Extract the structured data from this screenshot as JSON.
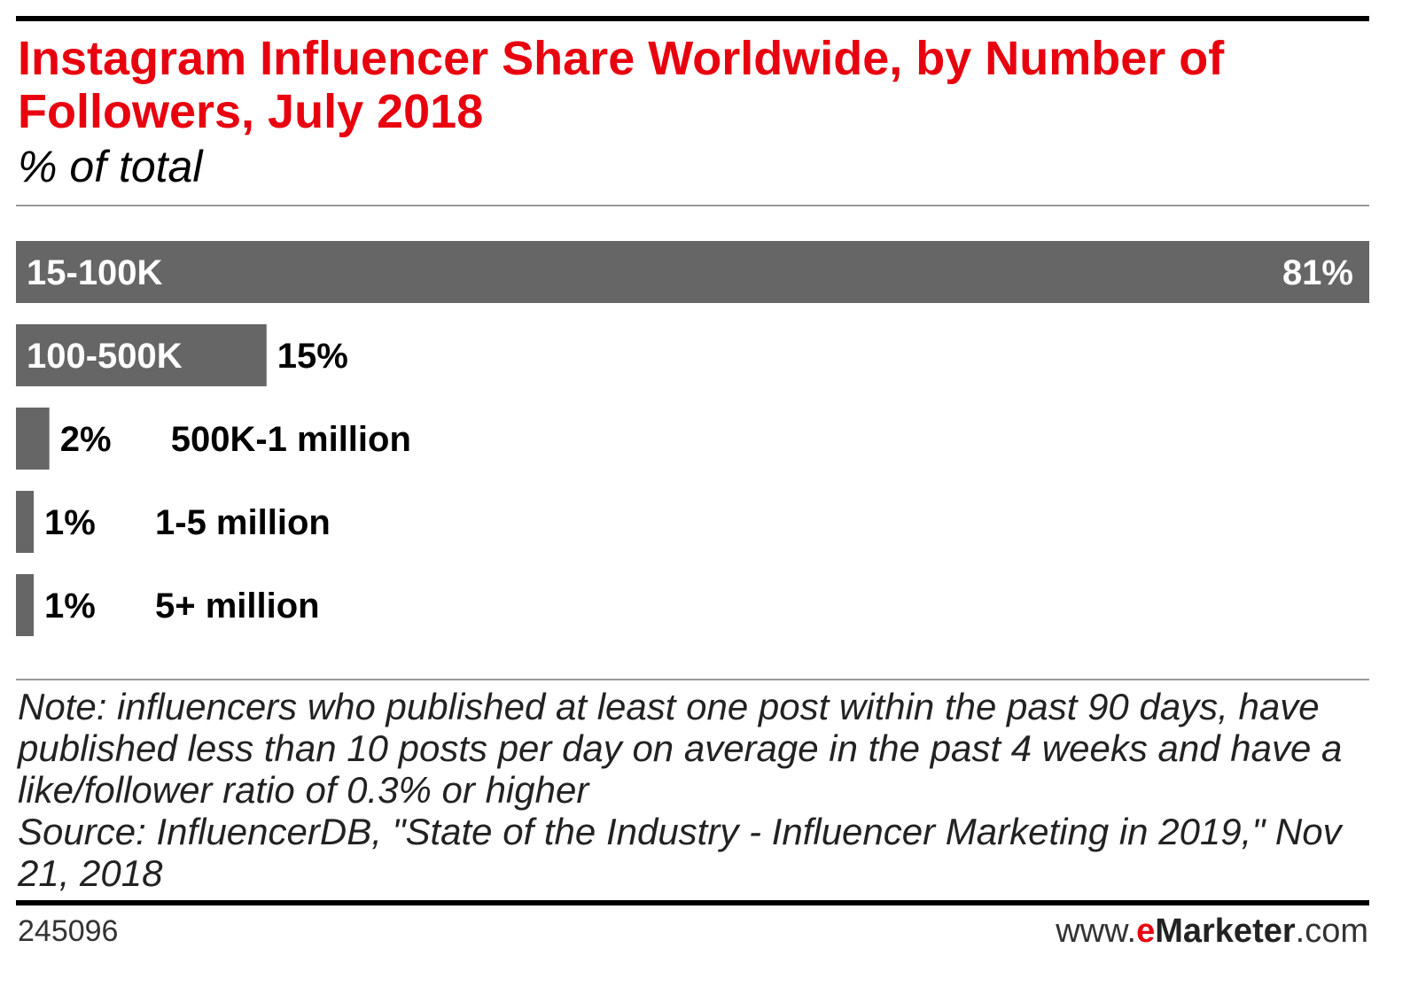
{
  "header": {
    "title": "Instagram Influencer Share Worldwide, by Number of Followers, July 2018",
    "subtitle": "% of total"
  },
  "chart_data": {
    "type": "bar",
    "orientation": "horizontal",
    "title": "Instagram Influencer Share Worldwide, by Number of Followers, July 2018",
    "subtitle": "% of total",
    "categories": [
      "15-100K",
      "100-500K",
      "500K-1 million",
      "1-5 million",
      "5+ million"
    ],
    "values": [
      81,
      15,
      2,
      1,
      1
    ],
    "value_labels": [
      "81%",
      "15%",
      "2%",
      "1%",
      "1%"
    ],
    "unit": "%",
    "xlim": [
      0,
      81
    ],
    "bar_color": "#666666",
    "grid": false,
    "legend": "none"
  },
  "footer": {
    "note": "Note: influencers who published at least one post within the past 90 days, have published less than 10 posts per day on average in the past 4 weeks and have a like/follower ratio of 0.3% or higher",
    "source": "Source: InfluencerDB, \"State of the Industry - Influencer Marketing in 2019,\" Nov 21, 2018",
    "chart_id": "245096",
    "brand_prefix": "www.",
    "brand_e": "e",
    "brand_name": "Marketer",
    "brand_suffix": ".com"
  }
}
